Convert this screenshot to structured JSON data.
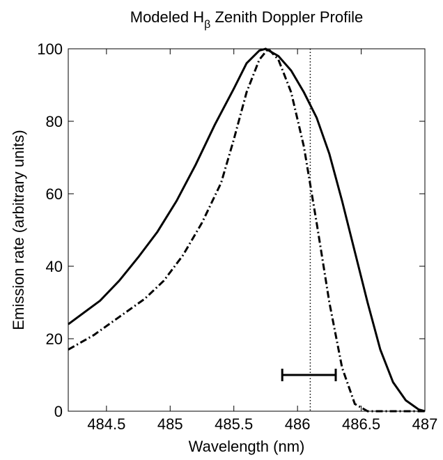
{
  "chart_data": {
    "type": "line",
    "title": [
      "Modeled H",
      "β",
      " Zenith Doppler Profile"
    ],
    "xlabel": "Wavelength (nm)",
    "ylabel": "Emission rate (arbitrary units)",
    "xlim": [
      484.2,
      487
    ],
    "xticks": [
      484.5,
      485,
      485.5,
      486,
      486.5,
      487
    ],
    "ylim": [
      0,
      100
    ],
    "yticks": [
      0,
      20,
      40,
      60,
      80,
      100
    ],
    "series": [
      {
        "style": "solid",
        "color": "#000000",
        "x": [
          484.2,
          484.45,
          484.6,
          484.75,
          484.9,
          485.05,
          485.2,
          485.35,
          485.5,
          485.6,
          485.7,
          485.75,
          485.85,
          485.95,
          486.05,
          486.15,
          486.25,
          486.35,
          486.45,
          486.55,
          486.65,
          486.75,
          486.85,
          486.95,
          487
        ],
        "values": [
          24,
          30.5,
          36,
          42.5,
          49.5,
          58,
          68,
          79,
          89,
          96,
          99.5,
          100,
          98,
          94,
          88,
          81,
          71,
          58,
          44,
          30,
          17,
          8,
          3,
          0.5,
          0
        ]
      },
      {
        "style": "dashdot",
        "color": "#000000",
        "x": [
          484.2,
          484.4,
          484.6,
          484.8,
          484.95,
          485.1,
          485.25,
          485.4,
          485.5,
          485.6,
          485.7,
          485.77,
          485.85,
          485.95,
          486.05,
          486.15,
          486.25,
          486.35,
          486.45,
          486.55,
          486.7,
          487
        ],
        "values": [
          17,
          21,
          26,
          31,
          36,
          43,
          52,
          63,
          75,
          88,
          97,
          100,
          97,
          88,
          73,
          52,
          30,
          12,
          2,
          0,
          0,
          0
        ]
      }
    ],
    "vline": 486.1,
    "error_bar": {
      "x": [
        485.88,
        486.3
      ],
      "y": 10
    }
  }
}
